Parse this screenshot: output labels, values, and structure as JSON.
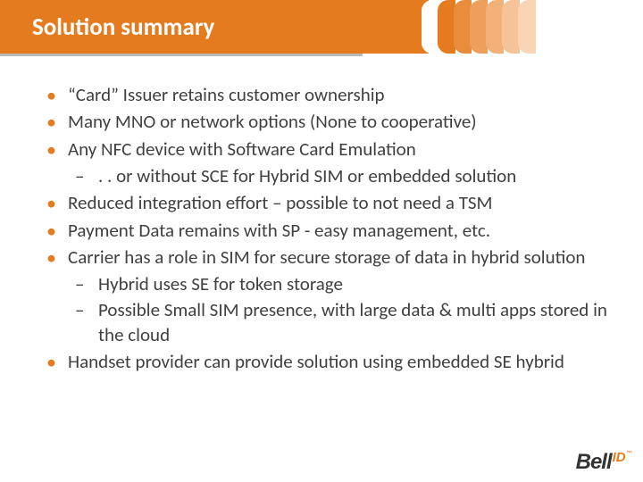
{
  "colors": {
    "accent": "#e57b1f",
    "text": "#404040",
    "stripe_colors": [
      "#ffffff",
      "#e57b1f",
      "#e98d3d",
      "#ed9f5b",
      "#f1b179",
      "#f5c397",
      "#f9d5b5"
    ]
  },
  "title": "Solution summary",
  "bullets": [
    {
      "text": "“Card” Issuer retains customer ownership"
    },
    {
      "text": "Many MNO or network options (None to cooperative)"
    },
    {
      "text": "Any NFC device with Software Card Emulation",
      "sub": [
        ". . or without SCE for Hybrid SIM or embedded solution"
      ]
    },
    {
      "text": "Reduced integration effort – possible to not need a TSM"
    },
    {
      "text": "Payment Data remains with SP - easy management, etc."
    },
    {
      "text": "Carrier has a role in SIM for secure storage of data in hybrid solution",
      "sub": [
        "Hybrid uses SE for token storage",
        "Possible Small SIM presence, with large data & multi apps stored in the cloud"
      ]
    },
    {
      "text": "Handset provider can provide solution using embedded SE hybrid"
    }
  ],
  "logo": {
    "brand": "Bell",
    "suffix": "ID",
    "tm": "™"
  }
}
